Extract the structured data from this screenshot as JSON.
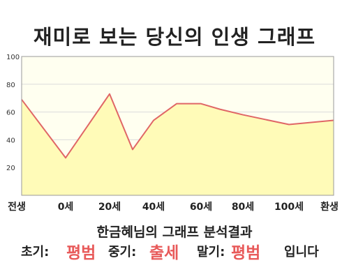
{
  "title": "재미로 보는 당신의 인생 그래프",
  "chart_data": {
    "type": "area",
    "x_labels": [
      "전생",
      "0세",
      "20세",
      "40세",
      "60세",
      "80세",
      "100세",
      "환생"
    ],
    "points": [
      {
        "x": "전생",
        "y": 69
      },
      {
        "x": "0세",
        "y": 27
      },
      {
        "x": "20세",
        "y": 73
      },
      {
        "x": "30세",
        "y": 33
      },
      {
        "x": "40세",
        "y": 54
      },
      {
        "x": "50세",
        "y": 66
      },
      {
        "x": "60세",
        "y": 66
      },
      {
        "x": "70세",
        "y": 62
      },
      {
        "x": "80세",
        "y": 58
      },
      {
        "x": "100세",
        "y": 51
      },
      {
        "x": "환생",
        "y": 54
      }
    ],
    "ylim": [
      0,
      100
    ],
    "y_ticks": [
      "100",
      "80",
      "60",
      "40",
      "20"
    ],
    "grid": true,
    "line_color": "#e06666",
    "fill_color": "#fffbb8",
    "plot_bg": "#fffff0"
  },
  "summary": "한금혜님의 그래프 분석결과",
  "result": {
    "early_label": "초기:",
    "early_value": "평범",
    "middle_label": "중기:",
    "middle_value": "출세",
    "late_label": "말기:",
    "late_value": "평범",
    "ending": "입니다",
    "highlight_color": "#e85a5a"
  }
}
